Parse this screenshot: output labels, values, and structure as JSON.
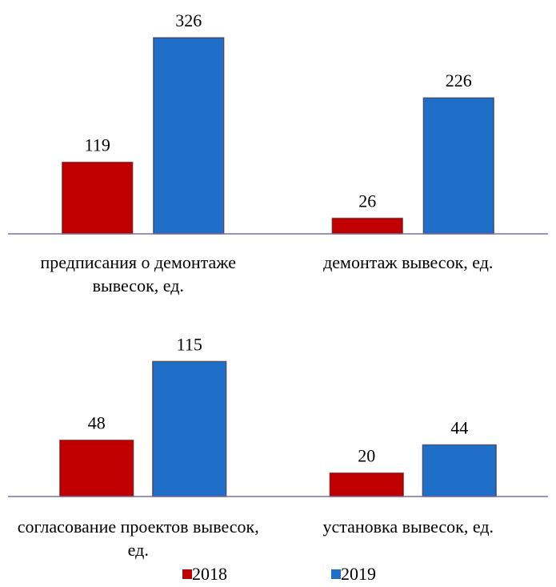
{
  "chart_data": [
    {
      "type": "bar",
      "categories": [
        "предписания о демонтаже вывесок, ед.",
        "демонтаж вывесок, ед."
      ],
      "series": [
        {
          "color": "#c00000",
          "values": [
            119,
            26
          ]
        },
        {
          "color": "#1f6fc8",
          "values": [
            326,
            226
          ]
        }
      ],
      "ylim": [
        0,
        350
      ]
    },
    {
      "type": "bar",
      "categories": [
        "согласование проектов вывесок, ед.",
        "установка вывесок, ед."
      ],
      "series": [
        {
          "name": "2018",
          "color": "#c00000",
          "values": [
            48,
            20
          ]
        },
        {
          "name": "2019",
          "color": "#1f6fc8",
          "values": [
            115,
            44
          ]
        }
      ],
      "ylim": [
        0,
        120
      ]
    }
  ]
}
